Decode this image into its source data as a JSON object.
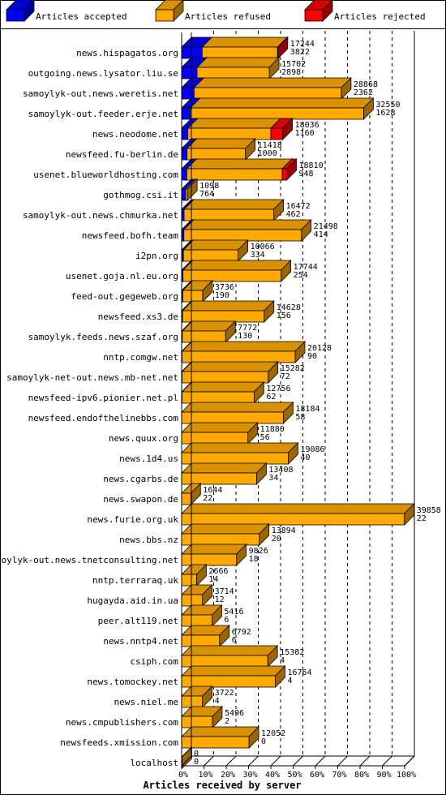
{
  "chart_data": {
    "type": "bar",
    "stacked": true,
    "orientation": "horizontal",
    "title": "",
    "xlabel": "Articles received by server",
    "ylabel": "",
    "xlim": [
      0,
      100
    ],
    "x_ticks": [
      "0%",
      "10%",
      "20%",
      "30%",
      "40%",
      "50%",
      "60%",
      "70%",
      "80%",
      "90%",
      "100%"
    ],
    "grid": true,
    "legend": "top",
    "series": [
      {
        "name": "Articles accepted",
        "color": "#0000ff"
      },
      {
        "name": "Articles refused",
        "color": "#ffaa00"
      },
      {
        "name": "Articles rejected",
        "color": "#ff0000"
      }
    ],
    "rows": [
      {
        "server": "news.hispagatos.org",
        "total": "17244",
        "accepted": "3822",
        "acc_pct": 9.2,
        "ref_pct": 33.8,
        "rej_pct": 0.2
      },
      {
        "server": "outgoing.news.lysator.liu.se",
        "total": "15702",
        "accepted": "2898",
        "acc_pct": 6.9,
        "ref_pct": 32.4,
        "rej_pct": 0.1
      },
      {
        "server": "samoylyk-out.news.weretis.net",
        "total": "28868",
        "accepted": "2362",
        "acc_pct": 5.6,
        "ref_pct": 66.0,
        "rej_pct": 0.1
      },
      {
        "server": "samoylyk-out.feeder.erje.net",
        "total": "32550",
        "accepted": "1628",
        "acc_pct": 3.9,
        "ref_pct": 77.7,
        "rej_pct": 0.1
      },
      {
        "server": "news.neodome.net",
        "total": "18036",
        "accepted": "1160",
        "acc_pct": 2.8,
        "ref_pct": 37.2,
        "rej_pct": 5.3
      },
      {
        "server": "newsfeed.fu-berlin.de",
        "total": "11418",
        "accepted": "1000",
        "acc_pct": 2.4,
        "ref_pct": 26.2,
        "rej_pct": 0.1
      },
      {
        "server": "usenet.blueworldhosting.com",
        "total": "18810",
        "accepted": "948",
        "acc_pct": 2.3,
        "ref_pct": 42.8,
        "rej_pct": 2.0
      },
      {
        "server": "gothmog.csi.it",
        "total": "1098",
        "accepted": "764",
        "acc_pct": 1.8,
        "ref_pct": 0.8,
        "rej_pct": 0.1
      },
      {
        "server": "samoylyk-out.news.chmurka.net",
        "total": "16472",
        "accepted": "462",
        "acc_pct": 1.1,
        "ref_pct": 40.2,
        "rej_pct": 0.1
      },
      {
        "server": "newsfeed.bofh.team",
        "total": "21498",
        "accepted": "414",
        "acc_pct": 1.0,
        "ref_pct": 52.7,
        "rej_pct": 0.1
      },
      {
        "server": "i2pn.org",
        "total": "10066",
        "accepted": "334",
        "acc_pct": 0.8,
        "ref_pct": 24.5,
        "rej_pct": 0.0
      },
      {
        "server": "usenet.goja.nl.eu.org",
        "total": "17744",
        "accepted": "254",
        "acc_pct": 0.6,
        "ref_pct": 44.0,
        "rej_pct": 0.0
      },
      {
        "server": "feed-out.gegeweb.org",
        "total": "3736",
        "accepted": "190",
        "acc_pct": 0.5,
        "ref_pct": 8.9,
        "rej_pct": 0.0
      },
      {
        "server": "newsfeed.xs3.de",
        "total": "14628",
        "accepted": "156",
        "acc_pct": 0.4,
        "ref_pct": 36.6,
        "rej_pct": 0.0
      },
      {
        "server": "samoylyk.feeds.news.szaf.org",
        "total": "7772",
        "accepted": "130",
        "acc_pct": 0.3,
        "ref_pct": 19.4,
        "rej_pct": 0.0
      },
      {
        "server": "nntp.comgw.net",
        "total": "20128",
        "accepted": "90",
        "acc_pct": 0.2,
        "ref_pct": 50.7,
        "rej_pct": 0.0
      },
      {
        "server": "samoylyk-net-out.news.mb-net.net",
        "total": "15282",
        "accepted": "72",
        "acc_pct": 0.2,
        "ref_pct": 38.6,
        "rej_pct": 0.0
      },
      {
        "server": "newsfeed-ipv6.pionier.net.pl",
        "total": "12756",
        "accepted": "62",
        "acc_pct": 0.2,
        "ref_pct": 32.3,
        "rej_pct": 0.0
      },
      {
        "server": "newsfeed.endofthelinebbs.com",
        "total": "18184",
        "accepted": "58",
        "acc_pct": 0.1,
        "ref_pct": 45.6,
        "rej_pct": 0.0
      },
      {
        "server": "news.quux.org",
        "total": "11880",
        "accepted": "56",
        "acc_pct": 0.1,
        "ref_pct": 29.7,
        "rej_pct": 0.0
      },
      {
        "server": "news.1d4.us",
        "total": "19086",
        "accepted": "40",
        "acc_pct": 0.1,
        "ref_pct": 47.8,
        "rej_pct": 0.0
      },
      {
        "server": "news.cgarbs.de",
        "total": "13408",
        "accepted": "34",
        "acc_pct": 0.1,
        "ref_pct": 33.6,
        "rej_pct": 0.0
      },
      {
        "server": "news.swapon.de",
        "total": "1644",
        "accepted": "22",
        "acc_pct": 0.1,
        "ref_pct": 4.1,
        "rej_pct": 0.0
      },
      {
        "server": "news.furie.org.uk",
        "total": "39858",
        "accepted": "22",
        "acc_pct": 0.1,
        "ref_pct": 99.9,
        "rej_pct": 0.0
      },
      {
        "server": "news.bbs.nz",
        "total": "13894",
        "accepted": "20",
        "acc_pct": 0.0,
        "ref_pct": 34.8,
        "rej_pct": 0.0
      },
      {
        "server": "samoylyk-out.news.tnetconsulting.net",
        "total": "9826",
        "accepted": "18",
        "acc_pct": 0.0,
        "ref_pct": 24.6,
        "rej_pct": 0.0
      },
      {
        "server": "nntp.terraraq.uk",
        "total": "2666",
        "accepted": "14",
        "acc_pct": 0.0,
        "ref_pct": 6.7,
        "rej_pct": 0.0
      },
      {
        "server": "hugayda.aid.in.ua",
        "total": "3714",
        "accepted": "12",
        "acc_pct": 0.0,
        "ref_pct": 9.3,
        "rej_pct": 0.0
      },
      {
        "server": "peer.alt119.net",
        "total": "5416",
        "accepted": "6",
        "acc_pct": 0.0,
        "ref_pct": 13.6,
        "rej_pct": 0.0
      },
      {
        "server": "news.nntp4.net",
        "total": "6792",
        "accepted": "6",
        "acc_pct": 0.0,
        "ref_pct": 17.0,
        "rej_pct": 0.0
      },
      {
        "server": "csiph.com",
        "total": "15382",
        "accepted": "4",
        "acc_pct": 0.0,
        "ref_pct": 38.6,
        "rej_pct": 0.0
      },
      {
        "server": "news.tomockey.net",
        "total": "16764",
        "accepted": "4",
        "acc_pct": 0.0,
        "ref_pct": 42.0,
        "rej_pct": 0.0
      },
      {
        "server": "news.niel.me",
        "total": "3722",
        "accepted": "4",
        "acc_pct": 0.0,
        "ref_pct": 9.3,
        "rej_pct": 0.0
      },
      {
        "server": "news.cmpublishers.com",
        "total": "5496",
        "accepted": "2",
        "acc_pct": 0.0,
        "ref_pct": 13.8,
        "rej_pct": 0.0
      },
      {
        "server": "newsfeeds.xmission.com",
        "total": "12052",
        "accepted": "0",
        "acc_pct": 0.0,
        "ref_pct": 30.2,
        "rej_pct": 0.0
      },
      {
        "server": "localhost",
        "total": "0",
        "accepted": "0",
        "acc_pct": 0.0,
        "ref_pct": 0.0,
        "rej_pct": 0.0
      }
    ]
  }
}
